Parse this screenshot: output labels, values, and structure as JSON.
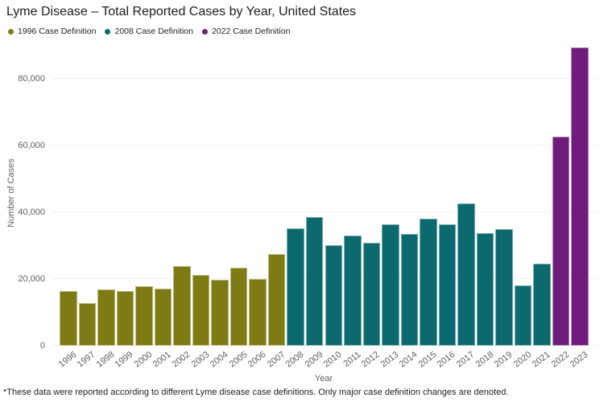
{
  "title": "Lyme Disease – Total Reported Cases by Year, United States",
  "legend": [
    {
      "label": "1996 Case Definition",
      "color": "#7e7a14"
    },
    {
      "label": "2008 Case Definition",
      "color": "#0c696d"
    },
    {
      "label": "2022 Case Definition",
      "color": "#6f1d7a"
    }
  ],
  "footnote": "*These data were reported according to different Lyme disease case definitions. Only major case definition changes are denoted.",
  "chart_data": {
    "type": "bar",
    "title": "Lyme Disease – Total Reported Cases by Year, United States",
    "xlabel": "Year",
    "ylabel": "Number of Cases",
    "ylim": [
      0,
      90000
    ],
    "yticks": [
      0,
      20000,
      40000,
      60000,
      80000
    ],
    "grid": "horizontal dotted",
    "legend_position": "top-left",
    "categories": [
      "1996",
      "1997",
      "1998",
      "1999",
      "2000",
      "2001",
      "2002",
      "2003",
      "2004",
      "2005",
      "2006",
      "2007",
      "2008",
      "2009",
      "2010",
      "2011",
      "2012",
      "2013",
      "2014",
      "2015",
      "2016",
      "2017",
      "2018",
      "2019",
      "2020",
      "2021",
      "2022",
      "2023"
    ],
    "values": [
      16455,
      12801,
      16801,
      16273,
      17730,
      17029,
      23763,
      21273,
      19804,
      23305,
      19931,
      27444,
      35198,
      38468,
      30158,
      33097,
      30831,
      36307,
      33461,
      38069,
      36429,
      42743,
      33666,
      34945,
      18000,
      24610,
      62551,
      89461
    ],
    "bar_series": [
      "1996 Case Definition",
      "1996 Case Definition",
      "1996 Case Definition",
      "1996 Case Definition",
      "1996 Case Definition",
      "1996 Case Definition",
      "1996 Case Definition",
      "1996 Case Definition",
      "1996 Case Definition",
      "1996 Case Definition",
      "1996 Case Definition",
      "1996 Case Definition",
      "2008 Case Definition",
      "2008 Case Definition",
      "2008 Case Definition",
      "2008 Case Definition",
      "2008 Case Definition",
      "2008 Case Definition",
      "2008 Case Definition",
      "2008 Case Definition",
      "2008 Case Definition",
      "2008 Case Definition",
      "2008 Case Definition",
      "2008 Case Definition",
      "2008 Case Definition",
      "2008 Case Definition",
      "2022 Case Definition",
      "2022 Case Definition"
    ],
    "series_colors": {
      "1996 Case Definition": "#7e7a14",
      "2008 Case Definition": "#0c696d",
      "2022 Case Definition": "#6f1d7a"
    }
  }
}
